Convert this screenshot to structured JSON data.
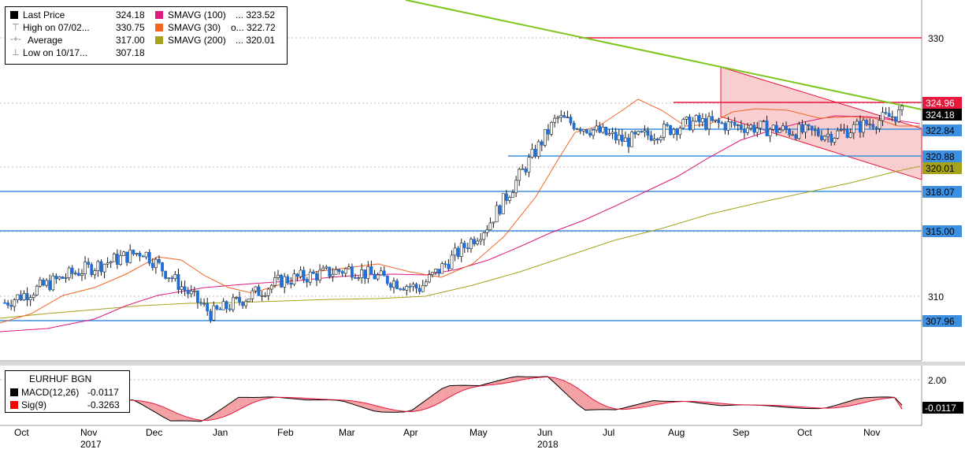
{
  "legend": {
    "rows": [
      {
        "label": "Last Price",
        "value": "324.18",
        "swatch": "#000000",
        "icon": "square"
      },
      {
        "label": "High on 07/02...",
        "value": "330.75",
        "swatch": "",
        "icon": "high-marker"
      },
      {
        "label": "Average",
        "value": "317.00",
        "swatch": "",
        "icon": "average-marker"
      },
      {
        "label": "Low on 10/17...",
        "value": "307.18",
        "swatch": "",
        "icon": "low-marker"
      }
    ],
    "ma_rows": [
      {
        "label": "SMAVG (100)",
        "value": "...  323.52",
        "swatch": "#e0197d"
      },
      {
        "label": "SMAVG (30)",
        "value": "o...  322.72",
        "swatch": "#f26522"
      },
      {
        "label": "SMAVG (200)",
        "value": "...  320.01",
        "swatch": "#a5a21b"
      }
    ]
  },
  "macd_legend": {
    "title": "EURHUF BGN",
    "rows": [
      {
        "label": "MACD(12,26)",
        "value": "-0.0117",
        "swatch": "#000000"
      },
      {
        "label": "Sig(9)",
        "value": "-0.3263",
        "swatch": "#ff0000"
      }
    ]
  },
  "price_axis": {
    "ticks": [
      "330",
      "310"
    ],
    "tags": [
      {
        "value": "324.96",
        "color": "#e8173c",
        "text_color": "#ffffff"
      },
      {
        "value": "324.18",
        "color": "#000000",
        "text_color": "#ffffff"
      },
      {
        "value": "322.84",
        "color": "#3d8fe0",
        "text_color": "#000000"
      },
      {
        "value": "320.88",
        "color": "#3d8fe0",
        "text_color": "#000000"
      },
      {
        "value": "320.01",
        "color": "#a5a21b",
        "text_color": "#000000"
      },
      {
        "value": "318.07",
        "color": "#3d8fe0",
        "text_color": "#000000"
      },
      {
        "value": "315.00",
        "color": "#3d8fe0",
        "text_color": "#000000"
      },
      {
        "value": "307.96",
        "color": "#3d8fe0",
        "text_color": "#000000"
      }
    ]
  },
  "macd_axis": {
    "ticks": [
      "2.00"
    ],
    "tag": {
      "value": "-0.0117",
      "color": "#000000",
      "text_color": "#ffffff"
    }
  },
  "time_axis": {
    "months": [
      "Oct",
      "Nov",
      "Dec",
      "Jan",
      "Feb",
      "Mar",
      "Apr",
      "May",
      "Jun",
      "Jul",
      "Aug",
      "Sep",
      "Oct",
      "Nov"
    ],
    "years": [
      "2017",
      "2018"
    ]
  },
  "colors": {
    "candle_up": "#ffffff",
    "candle_down": "#1f6fd6",
    "resistance": "#e8173c",
    "support": "#3d8fe0",
    "trendline": "#7cc61e",
    "channel_fill": "#f7b9bd",
    "ma100": "#e0197d",
    "ma30": "#f26522",
    "ma200": "#a5a21b"
  },
  "chart_data": {
    "type": "candlestick",
    "instrument": "EURHUF BGN",
    "series_summary": {
      "last": 324.18,
      "high": 330.75,
      "average": 317.0,
      "low": 307.18,
      "smavg_100": 323.52,
      "smavg_30": 322.72,
      "smavg_200": 320.01
    },
    "horizontal_levels": [
      330.0,
      324.96,
      322.84,
      320.88,
      318.07,
      315.0,
      307.96
    ],
    "monthly_close_path": {
      "x": [
        "Oct 2017",
        "Nov 2017",
        "Dec 2017",
        "Jan 2018",
        "Feb 2018",
        "Mar 2018",
        "Apr 2018",
        "May 2018",
        "Jun 2018",
        "Jul 2018",
        "Aug 2018",
        "Sep 2018",
        "Oct 2018",
        "Nov 2018"
      ],
      "y": [
        309.5,
        311.8,
        313.5,
        308.6,
        311.2,
        312.1,
        310.6,
        315.5,
        323.8,
        322.0,
        323.5,
        323.0,
        322.5,
        324.18
      ]
    },
    "macd": {
      "macd_last": -0.0117,
      "signal_last": -0.3263,
      "ylim": [
        -1.0,
        2.5
      ]
    },
    "ylim": [
      305.0,
      333.0
    ]
  }
}
